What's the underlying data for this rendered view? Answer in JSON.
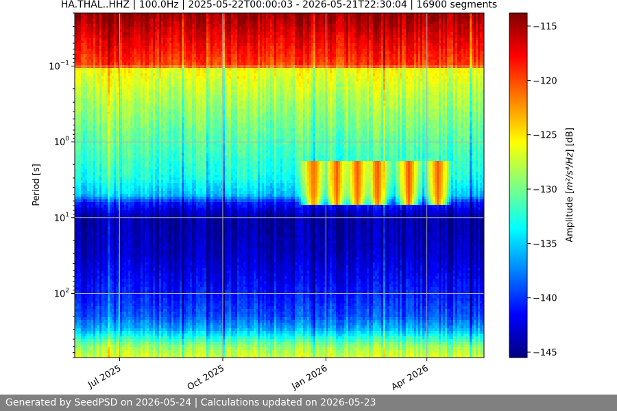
{
  "chart_data": {
    "type": "heatmap",
    "title": "HA.THAL..HHZ | 100.0Hz | 2025-05-22T00:00:03 - 2026-05-21T22:30:04 | 16900 segments",
    "ylabel": "Period [s]",
    "yscale": "log",
    "ylim": [
      0.02,
      700
    ],
    "y_inverted": true,
    "y_ticks": [
      {
        "value": 0.1,
        "base": "10",
        "exp": "−1"
      },
      {
        "value": 1,
        "base": "10",
        "exp": "0"
      },
      {
        "value": 10,
        "base": "10",
        "exp": "1"
      },
      {
        "value": 100,
        "base": "10",
        "exp": "2"
      }
    ],
    "x_start": "2025-05-22T00:00:03",
    "x_end": "2026-05-21T22:30:04",
    "x_ticks": [
      {
        "date": "2025-07-01",
        "label": "Jul 2025"
      },
      {
        "date": "2025-10-01",
        "label": "Oct 2025"
      },
      {
        "date": "2026-01-01",
        "label": "Jan 2026"
      },
      {
        "date": "2026-04-01",
        "label": "Apr 2026"
      }
    ],
    "grid": true,
    "colormap": "jet",
    "colorbar": {
      "label_prefix": "Amplitude [",
      "label_math": "m²/s⁴/Hz",
      "label_suffix": "] [dB]",
      "min": -145.5,
      "max": -113.8,
      "ticks": [
        -115,
        -120,
        -125,
        -130,
        -135,
        -140,
        -145
      ]
    },
    "amplitude_profile": [
      {
        "period": 0.02,
        "db": -114.5
      },
      {
        "period": 0.1,
        "db": -120
      },
      {
        "period": 0.11,
        "db": -126
      },
      {
        "period": 0.3,
        "db": -128.5
      },
      {
        "period": 1,
        "db": -131
      },
      {
        "period": 3,
        "db": -133
      },
      {
        "period": 5,
        "db": -135.5
      },
      {
        "period": 6.5,
        "db": -141
      },
      {
        "period": 10,
        "db": -144.5
      },
      {
        "period": 30,
        "db": -143.5
      },
      {
        "period": 100,
        "db": -141
      },
      {
        "period": 200,
        "db": -139
      },
      {
        "period": 300,
        "db": -136
      },
      {
        "period": 500,
        "db": -129
      },
      {
        "period": 700,
        "db": -127
      }
    ],
    "microseism_peaks": [
      {
        "date": "2025-12-20",
        "db": -119
      },
      {
        "date": "2026-01-10",
        "db": -118
      },
      {
        "date": "2026-01-28",
        "db": -119
      },
      {
        "date": "2026-02-15",
        "db": -118
      },
      {
        "date": "2026-03-15",
        "db": -121
      },
      {
        "date": "2026-04-10",
        "db": -120
      }
    ]
  },
  "footer": {
    "text": "Generated by SeedPSD on 2026-05-24 | Calculations updated on 2026-05-23"
  }
}
